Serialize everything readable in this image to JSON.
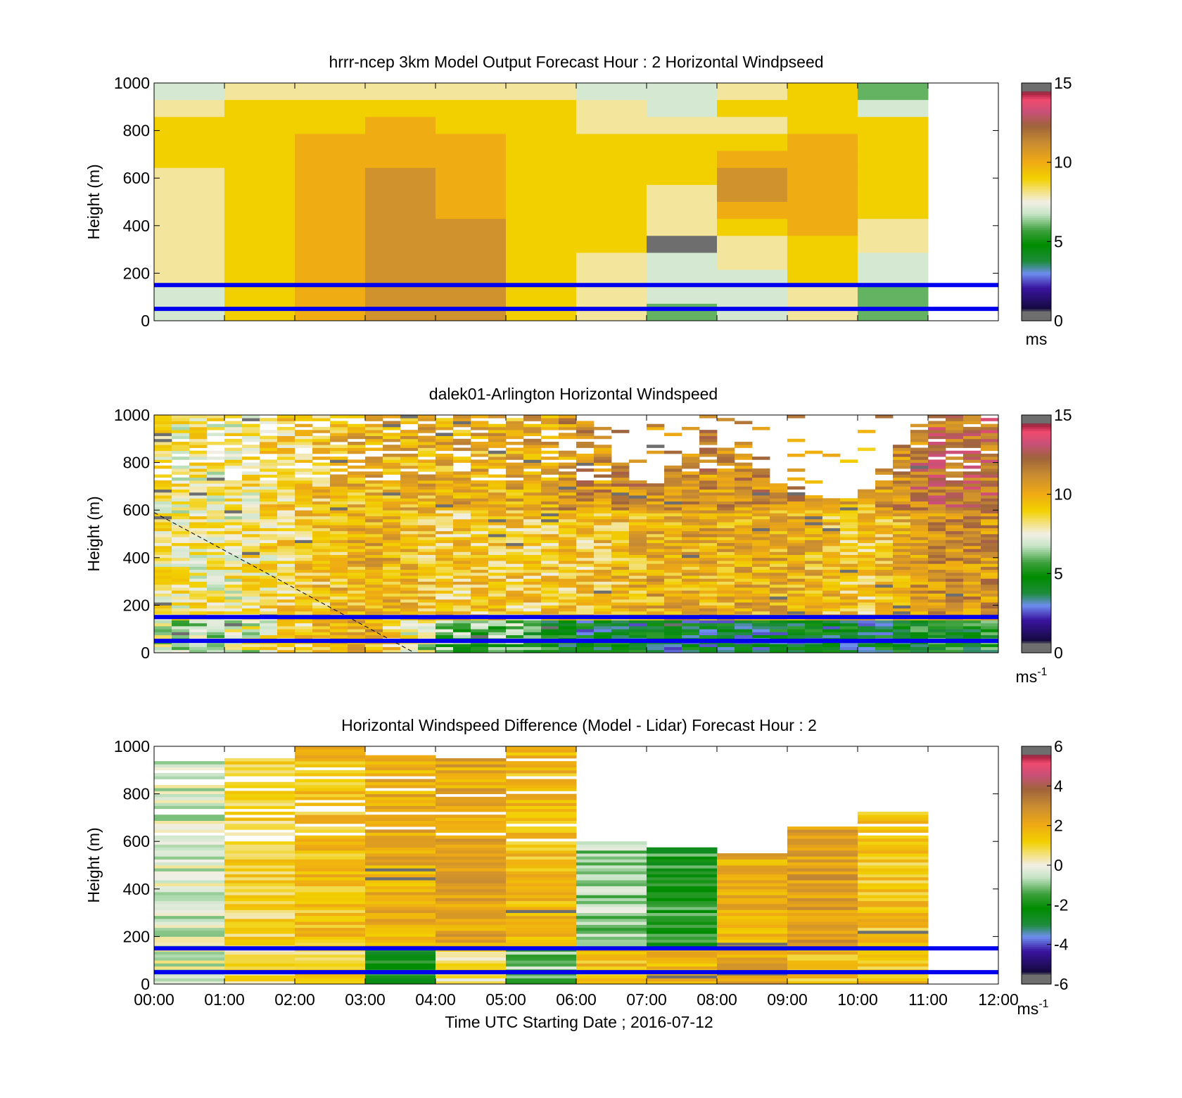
{
  "figure": {
    "xlabel": "Time UTC  Starting Date ; 2016-07-12",
    "xticks": [
      "00:00",
      "01:00",
      "02:00",
      "03:00",
      "04:00",
      "05:00",
      "06:00",
      "07:00",
      "08:00",
      "09:00",
      "10:00",
      "11:00",
      "12:00"
    ],
    "ylabel": "Height (m)",
    "yticks": [
      "0",
      "200",
      "400",
      "600",
      "800",
      "1000"
    ],
    "reference_lines_m": [
      50,
      150
    ],
    "colors": {
      "reference_line": "#0000ee"
    }
  },
  "chart_data": [
    {
      "type": "heatmap",
      "title": "hrrr-ncep 3km Model Output   Forecast Hour : 2 Horizontal Windpseed",
      "xlim": [
        0,
        12
      ],
      "ylim": [
        0,
        1000
      ],
      "time_columns": [
        "00:00",
        "01:00",
        "02:00",
        "03:00",
        "04:00",
        "05:00",
        "06:00",
        "07:00",
        "08:00",
        "09:00",
        "10:00"
      ],
      "colorbar": {
        "min": 0,
        "max": 15,
        "ticks": [
          "0",
          "5",
          "10",
          "15"
        ],
        "unit": "ms"
      },
      "values": [
        [
          7,
          8,
          8,
          8,
          8,
          8,
          7,
          7,
          8,
          9,
          6
        ],
        [
          8,
          9,
          9,
          9,
          9,
          9,
          8,
          7,
          9,
          9,
          7
        ],
        [
          9,
          9,
          9,
          10,
          9,
          9,
          8,
          8,
          8,
          9,
          9
        ],
        [
          9,
          9,
          10,
          10,
          10,
          9,
          9,
          9,
          9,
          10,
          9
        ],
        [
          9,
          9,
          10,
          10,
          10,
          9,
          9,
          9,
          10,
          10,
          9
        ],
        [
          8,
          9,
          10,
          11,
          10,
          9,
          9,
          9,
          11,
          10,
          9
        ],
        [
          8,
          9,
          10,
          11,
          10,
          9,
          9,
          8,
          11,
          10,
          9
        ],
        [
          8,
          9,
          10,
          11,
          10,
          9,
          9,
          8,
          10,
          10,
          9
        ],
        [
          8,
          9,
          10,
          11,
          11,
          9,
          9,
          8,
          9,
          10,
          8
        ],
        [
          8,
          9,
          10,
          11,
          11,
          9,
          9,
          0,
          8,
          9,
          8
        ],
        [
          8,
          9,
          10,
          11,
          11,
          9,
          8,
          7,
          8,
          9,
          7
        ],
        [
          8,
          9,
          10,
          11,
          11,
          9,
          8,
          7,
          7,
          9,
          7
        ],
        [
          7,
          9,
          10,
          11,
          11,
          9,
          8,
          7,
          7,
          8,
          6
        ],
        [
          7,
          9,
          10,
          11,
          11,
          9,
          8,
          6,
          7,
          8,
          6
        ]
      ]
    },
    {
      "type": "heatmap",
      "title": "dalek01-Arlington  Horizontal Windspeed",
      "xlim": [
        0,
        12
      ],
      "ylim": [
        0,
        1000
      ],
      "colorbar": {
        "min": 0,
        "max": 15,
        "ticks": [
          "0",
          "5",
          "10",
          "15"
        ],
        "unit": "ms",
        "unit_exp": "-1"
      },
      "time_hours": [
        0,
        1,
        2,
        3,
        4,
        5,
        6,
        7,
        8,
        9,
        10,
        11,
        11.8
      ],
      "speed_low_m": [
        7,
        7,
        9,
        10,
        6,
        6,
        4,
        4,
        4,
        4,
        4,
        5,
        5
      ],
      "speed_mid_m": [
        8,
        8,
        9,
        10,
        9,
        9,
        9,
        10,
        10,
        10,
        9,
        11,
        11
      ],
      "speed_top_m": [
        8,
        8,
        9,
        10,
        10,
        10,
        11,
        11,
        11,
        11,
        10,
        12,
        12
      ],
      "data_ceiling_m": [
        1000,
        1000,
        1000,
        1000,
        1000,
        1000,
        1000,
        680,
        980,
        680,
        640,
        1000,
        1000
      ],
      "dashed_line": {
        "from": [
          0,
          590
        ],
        "to": [
          3.7,
          0
        ]
      }
    },
    {
      "type": "heatmap",
      "title": "Horizontal Windspeed Difference (Model - Lidar) Forecast Hour : 2",
      "xlim": [
        0,
        12
      ],
      "ylim": [
        0,
        1000
      ],
      "time_columns": [
        "00:00",
        "01:00",
        "02:00",
        "03:00",
        "04:00",
        "05:00",
        "06:00",
        "07:00",
        "08:00",
        "09:00",
        "10:00"
      ],
      "colorbar": {
        "min": -6,
        "max": 6,
        "ticks": [
          "-6",
          "-4",
          "-2",
          "0",
          "2",
          "4",
          "6"
        ],
        "unit": "ms",
        "unit_exp": "-1"
      },
      "column_top_m": [
        930,
        960,
        1000,
        960,
        940,
        1000,
        590,
        570,
        550,
        660,
        720
      ],
      "column_base_diff": [
        -0.3,
        1.0,
        1.5,
        2.0,
        2.2,
        1.6,
        -0.8,
        -1.8,
        2.0,
        2.4,
        1.4
      ],
      "column_near_surface_diff": [
        -0.2,
        0.8,
        1.0,
        -2.0,
        0.5,
        -1.0,
        1.5,
        1.5,
        2.0,
        1.5,
        1.5
      ]
    }
  ]
}
